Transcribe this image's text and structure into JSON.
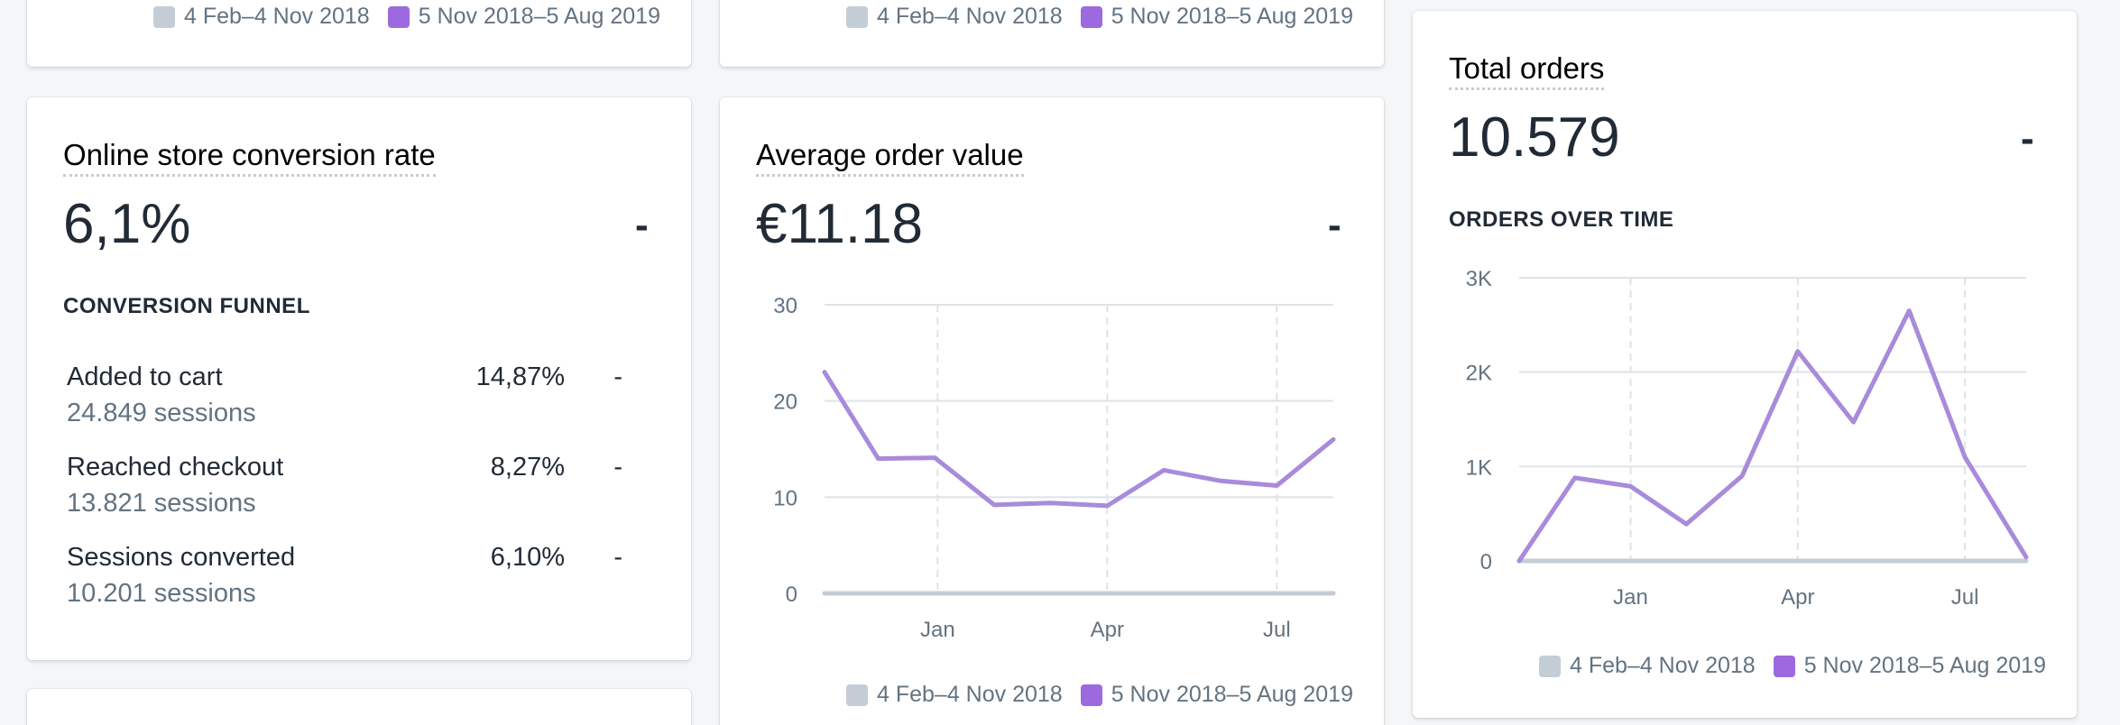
{
  "legend": {
    "prev": "4 Feb–4 Nov 2018",
    "curr": "5 Nov 2018–5 Aug 2019"
  },
  "colors": {
    "current_series": "#a88bdb",
    "previous_series": "#c4cdd5",
    "grid": "#dfe3e8"
  },
  "conversion": {
    "title": "Online store conversion rate",
    "value": "6,1%",
    "change": "-",
    "funnel_title": "CONVERSION FUNNEL",
    "rows": [
      {
        "label": "Added to cart",
        "sessions": "24.849 sessions",
        "percent": "14,87%",
        "change": "-"
      },
      {
        "label": "Reached checkout",
        "sessions": "13.821 sessions",
        "percent": "8,27%",
        "change": "-"
      },
      {
        "label": "Sessions converted",
        "sessions": "10.201 sessions",
        "percent": "6,10%",
        "change": "-"
      }
    ]
  },
  "aov": {
    "title": "Average order value",
    "value": "€11.18",
    "change": "-"
  },
  "orders": {
    "title": "Total orders",
    "value": "10.579",
    "change": "-",
    "chart_title": "ORDERS OVER TIME"
  },
  "chart_data": [
    {
      "type": "line",
      "chart": "average-order-value",
      "yticks": [
        "0",
        "10",
        "20",
        "30"
      ],
      "ytick_values": [
        0,
        10,
        20,
        30
      ],
      "ylim": [
        0,
        30
      ],
      "xticks": [
        "Jan",
        "Apr",
        "Jul"
      ],
      "xtick_positions": [
        2,
        5,
        8
      ],
      "xlim": [
        0,
        9
      ],
      "series": [
        {
          "name": "5 Nov 2018–5 Aug 2019",
          "x": [
            0,
            0.95,
            1.95,
            3,
            4,
            5,
            6,
            7,
            8,
            9
          ],
          "values": [
            23,
            14,
            14.1,
            9.2,
            9.4,
            9.1,
            12.8,
            11.7,
            11.2,
            16
          ]
        },
        {
          "name": "4 Feb–4 Nov 2018",
          "x": [
            0,
            9
          ],
          "values": [
            0,
            0
          ]
        }
      ]
    },
    {
      "type": "line",
      "chart": "orders-over-time",
      "yticks": [
        "0",
        "1K",
        "2K",
        "3K"
      ],
      "ytick_values": [
        0,
        1000,
        2000,
        3000
      ],
      "ylim": [
        0,
        3000
      ],
      "xticks": [
        "Jan",
        "Apr",
        "Jul"
      ],
      "xtick_positions": [
        2,
        5,
        8
      ],
      "xlim": [
        0,
        9.1
      ],
      "series": [
        {
          "name": "5 Nov 2018–5 Aug 2019",
          "x": [
            0,
            1,
            2,
            3,
            4,
            5,
            6,
            7,
            8,
            9.1
          ],
          "values": [
            0,
            880,
            790,
            390,
            900,
            2220,
            1470,
            2650,
            1100,
            40
          ]
        },
        {
          "name": "4 Feb–4 Nov 2018",
          "x": [
            0,
            9.1
          ],
          "values": [
            0,
            0
          ]
        }
      ]
    }
  ]
}
